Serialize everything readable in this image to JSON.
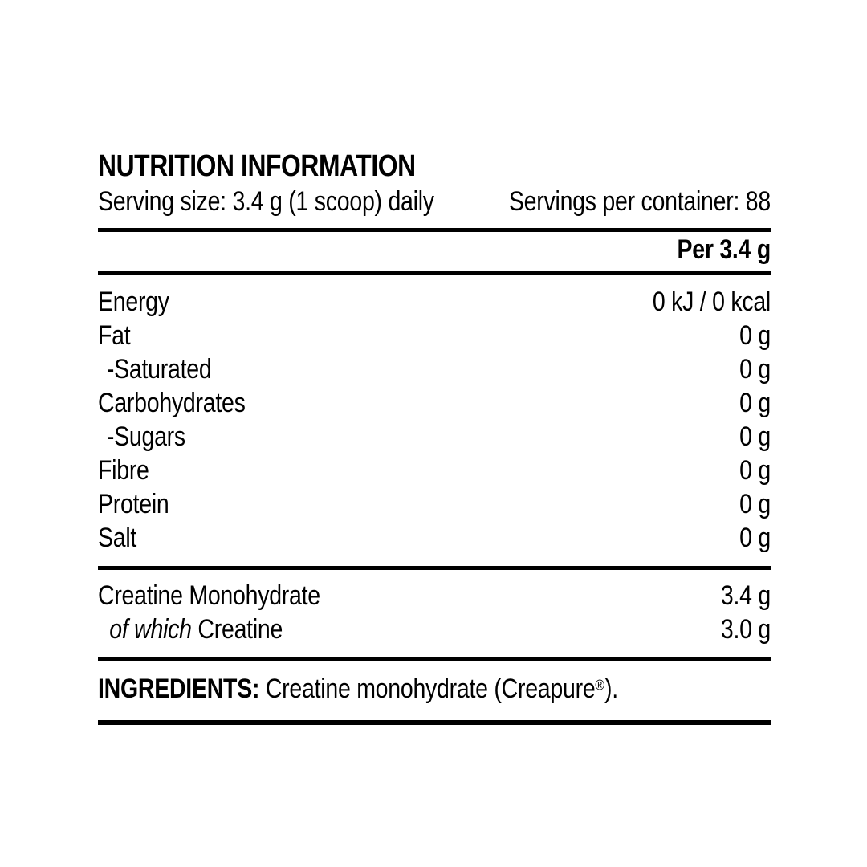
{
  "label": {
    "title": "NUTRITION INFORMATION",
    "serving": {
      "size": "Serving size: 3.4 g (1 scoop) daily",
      "per_container": "Servings per container: 88"
    },
    "column_header": "Per 3.4 g",
    "nutrients": [
      {
        "label": "Energy",
        "value": "0 kJ / 0 kcal"
      },
      {
        "label": "Fat",
        "value": "0 g"
      },
      {
        "label": "-Saturated",
        "value": "0 g"
      },
      {
        "label": "Carbohydrates",
        "value": "0 g"
      },
      {
        "label": "-Sugars",
        "value": "0 g"
      },
      {
        "label": "Fibre",
        "value": "0 g"
      },
      {
        "label": "Protein",
        "value": "0 g"
      },
      {
        "label": "Salt",
        "value": "0 g"
      }
    ],
    "actives": [
      {
        "label": "Creatine Monohydrate",
        "value": "3.4 g"
      },
      {
        "label_prefix_italic": "of which ",
        "label": "Creatine",
        "value": "3.0 g"
      }
    ],
    "ingredients": {
      "heading": "INGREDIENTS:",
      "text": " Creatine monohydrate (Creapure",
      "registered_mark": "®",
      "suffix": ")."
    },
    "colors": {
      "text": "#000000",
      "background": "#ffffff",
      "rule": "#000000"
    }
  }
}
